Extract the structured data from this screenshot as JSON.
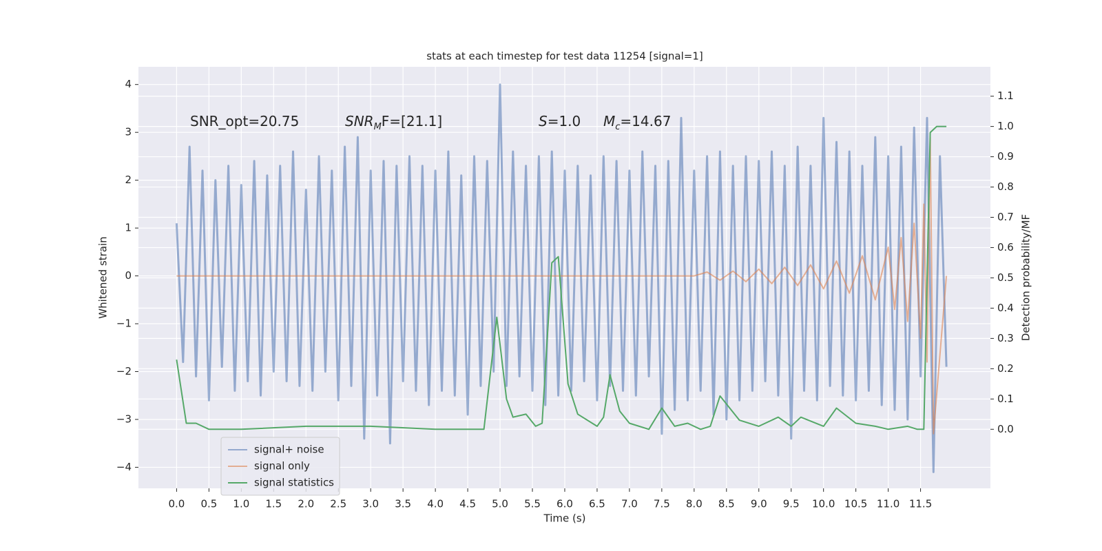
{
  "chart_data": {
    "type": "line",
    "title": "stats at each timestep for test data 11254 [signal=1]",
    "xlabel": "Time (s)",
    "ylabel": "Whitened strain",
    "y2label": "Detection probability/MF",
    "annotations": [
      {
        "text": "SNR_opt=20.75"
      },
      {
        "base": "SNR",
        "sub": "M",
        "tail": "F=[21.1]"
      },
      {
        "base": "S",
        "tail": "=1.0"
      },
      {
        "base": "M",
        "sub": "c",
        "tail": "=14.67"
      }
    ],
    "xlim": [
      -0.59,
      12.58
    ],
    "ylim": [
      -4.44,
      4.37
    ],
    "y2lim": [
      -0.195,
      1.197
    ],
    "xticks": [
      {
        "value": 0,
        "label": "0.0"
      },
      {
        "value": 0.5,
        "label": "0.5"
      },
      {
        "value": 1,
        "label": "1.0"
      },
      {
        "value": 1.5,
        "label": "1.5"
      },
      {
        "value": 2,
        "label": "2.0"
      },
      {
        "value": 2.5,
        "label": "2.5"
      },
      {
        "value": 3,
        "label": "3.0"
      },
      {
        "value": 3.5,
        "label": "3.5"
      },
      {
        "value": 4,
        "label": "4.0"
      },
      {
        "value": 4.5,
        "label": "4.5"
      },
      {
        "value": 5,
        "label": "5.0"
      },
      {
        "value": 5.5,
        "label": "5.5"
      },
      {
        "value": 6,
        "label": "6.0"
      },
      {
        "value": 6.5,
        "label": "6.5"
      },
      {
        "value": 7,
        "label": "7.0"
      },
      {
        "value": 7.5,
        "label": "7.5"
      },
      {
        "value": 8,
        "label": "8.0"
      },
      {
        "value": 8.5,
        "label": "8.5"
      },
      {
        "value": 9,
        "label": "9.0"
      },
      {
        "value": 9.5,
        "label": "9.5"
      },
      {
        "value": 10,
        "label": "10.0"
      },
      {
        "value": 10.5,
        "label": "10.5"
      },
      {
        "value": 11,
        "label": "11.0"
      },
      {
        "value": 11.5,
        "label": "11.5"
      }
    ],
    "yticks": [
      {
        "value": -4,
        "label": "−4"
      },
      {
        "value": -3,
        "label": "−3"
      },
      {
        "value": -2,
        "label": "−2"
      },
      {
        "value": -1,
        "label": "−1"
      },
      0,
      1,
      2,
      3,
      4
    ],
    "y2ticks": [
      {
        "value": 0,
        "label": "0.0"
      },
      {
        "value": 0.1,
        "label": "0.1"
      },
      {
        "value": 0.2,
        "label": "0.2"
      },
      {
        "value": 0.3,
        "label": "0.3"
      },
      {
        "value": 0.4,
        "label": "0.4"
      },
      {
        "value": 0.5,
        "label": "0.5"
      },
      {
        "value": 0.6,
        "label": "0.6"
      },
      {
        "value": 0.7,
        "label": "0.7"
      },
      {
        "value": 0.8,
        "label": "0.8"
      },
      {
        "value": 0.9,
        "label": "0.9"
      },
      {
        "value": 1,
        "label": "1.0"
      },
      {
        "value": 1.1,
        "label": "1.1"
      }
    ],
    "grid": true,
    "legend": "lower left",
    "series": [
      {
        "name": "signal+ noise",
        "color": "#4c72b0",
        "x": [
          0.0,
          0.1,
          0.2,
          0.3,
          0.4,
          0.5,
          0.6,
          0.7,
          0.8,
          0.9,
          1.0,
          1.1,
          1.2,
          1.3,
          1.4,
          1.5,
          1.6,
          1.7,
          1.8,
          1.9,
          2.0,
          2.1,
          2.2,
          2.3,
          2.4,
          2.5,
          2.6,
          2.7,
          2.8,
          2.9,
          3.0,
          3.1,
          3.2,
          3.3,
          3.4,
          3.5,
          3.6,
          3.7,
          3.8,
          3.9,
          4.0,
          4.1,
          4.2,
          4.3,
          4.4,
          4.5,
          4.6,
          4.7,
          4.8,
          4.9,
          5.0,
          5.1,
          5.2,
          5.3,
          5.4,
          5.5,
          5.6,
          5.7,
          5.8,
          5.9,
          6.0,
          6.1,
          6.2,
          6.3,
          6.4,
          6.5,
          6.6,
          6.7,
          6.8,
          6.9,
          7.0,
          7.1,
          7.2,
          7.3,
          7.4,
          7.5,
          7.6,
          7.7,
          7.8,
          7.9,
          8.0,
          8.1,
          8.2,
          8.3,
          8.4,
          8.5,
          8.6,
          8.7,
          8.8,
          8.9,
          9.0,
          9.1,
          9.2,
          9.3,
          9.4,
          9.5,
          9.6,
          9.7,
          9.8,
          9.9,
          10.0,
          10.1,
          10.2,
          10.3,
          10.4,
          10.5,
          10.6,
          10.7,
          10.8,
          10.9,
          11.0,
          11.1,
          11.2,
          11.3,
          11.4,
          11.5,
          11.6,
          11.7,
          11.8,
          11.9
        ],
        "values": [
          1.1,
          -1.8,
          2.7,
          -2.1,
          2.2,
          -2.6,
          2.0,
          -1.9,
          2.3,
          -2.4,
          1.9,
          -2.2,
          2.4,
          -2.5,
          2.1,
          -2.0,
          2.3,
          -2.2,
          2.6,
          -2.3,
          1.8,
          -2.4,
          2.5,
          -2.0,
          2.2,
          -2.6,
          2.7,
          -2.3,
          2.9,
          -3.4,
          2.2,
          -2.5,
          2.4,
          -3.5,
          2.3,
          -2.2,
          2.5,
          -2.4,
          2.3,
          -2.7,
          2.2,
          -2.4,
          2.6,
          -2.5,
          2.1,
          -2.9,
          2.5,
          -2.3,
          2.4,
          -2.0,
          4.0,
          -2.3,
          2.6,
          -2.1,
          2.3,
          -2.4,
          2.5,
          -2.7,
          2.6,
          -2.5,
          2.2,
          -2.4,
          2.3,
          -2.2,
          2.1,
          -2.6,
          2.5,
          -2.3,
          2.4,
          -2.4,
          2.2,
          -2.5,
          2.6,
          -2.1,
          2.3,
          -3.3,
          2.4,
          -2.8,
          3.3,
          -2.6,
          2.2,
          -2.4,
          2.5,
          -2.9,
          2.6,
          -3.0,
          2.3,
          -2.6,
          2.5,
          -2.4,
          2.4,
          -2.2,
          2.6,
          -2.5,
          2.3,
          -3.4,
          2.7,
          -2.4,
          2.3,
          -2.6,
          3.3,
          -2.3,
          2.8,
          -2.5,
          2.6,
          -2.6,
          2.3,
          -2.4,
          2.9,
          -2.7,
          2.5,
          -2.8,
          2.7,
          -3.0,
          3.1,
          -2.1,
          3.3,
          -4.1,
          2.5,
          -1.9
        ]
      },
      {
        "name": "signal only",
        "color": "#dd8452",
        "x": [
          0.0,
          4.0,
          8.0,
          8.2,
          8.4,
          8.6,
          8.8,
          9.0,
          9.2,
          9.4,
          9.6,
          9.8,
          10.0,
          10.2,
          10.4,
          10.6,
          10.8,
          11.0,
          11.1,
          11.2,
          11.3,
          11.4,
          11.5,
          11.55,
          11.6,
          11.65,
          11.7,
          11.9
        ],
        "values": [
          0.0,
          0.0,
          0.0,
          0.08,
          -0.09,
          0.1,
          -0.12,
          0.14,
          -0.16,
          0.18,
          -0.2,
          0.23,
          -0.27,
          0.31,
          -0.36,
          0.42,
          -0.5,
          0.6,
          -0.7,
          0.8,
          -0.95,
          1.1,
          -1.3,
          1.5,
          -1.8,
          2.9,
          -3.3,
          0.0
        ]
      },
      {
        "name": "signal statistics",
        "color": "#55a868",
        "axis": "y2",
        "x": [
          0.0,
          0.15,
          0.3,
          0.5,
          1.0,
          2.0,
          3.0,
          4.0,
          4.75,
          4.95,
          5.1,
          5.2,
          5.4,
          5.55,
          5.65,
          5.8,
          5.9,
          6.05,
          6.2,
          6.5,
          6.6,
          6.7,
          6.85,
          7.0,
          7.3,
          7.5,
          7.7,
          7.9,
          8.1,
          8.25,
          8.4,
          8.7,
          9.0,
          9.3,
          9.5,
          9.65,
          10.0,
          10.2,
          10.5,
          10.8,
          11.0,
          11.3,
          11.45,
          11.55,
          11.65,
          11.75,
          11.9
        ],
        "values": [
          0.23,
          0.02,
          0.02,
          0.0,
          0.0,
          0.01,
          0.01,
          0.0,
          0.0,
          0.37,
          0.1,
          0.04,
          0.05,
          0.01,
          0.02,
          0.55,
          0.57,
          0.15,
          0.05,
          0.01,
          0.04,
          0.18,
          0.06,
          0.02,
          0.0,
          0.07,
          0.01,
          0.02,
          0.0,
          0.01,
          0.11,
          0.03,
          0.01,
          0.04,
          0.01,
          0.04,
          0.01,
          0.07,
          0.02,
          0.01,
          0.0,
          0.01,
          0.0,
          0.0,
          0.98,
          1.0,
          1.0
        ]
      }
    ]
  }
}
